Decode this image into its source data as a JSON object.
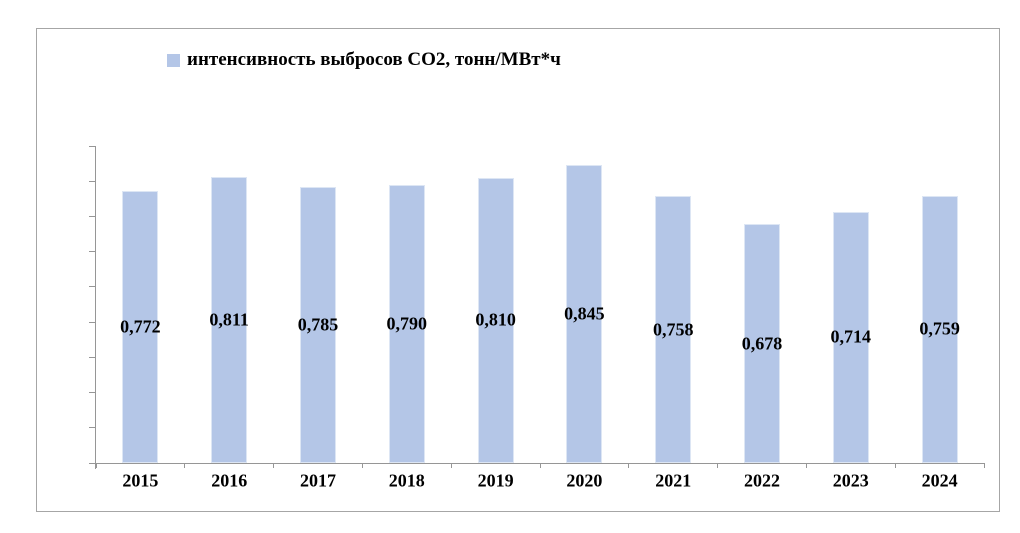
{
  "chart_data": {
    "type": "bar",
    "title": "",
    "legend": [
      "интенсивность выбросов CO2, тонн/МВт*ч"
    ],
    "legend_position": "top",
    "categories": [
      "2015",
      "2016",
      "2017",
      "2018",
      "2019",
      "2020",
      "2021",
      "2022",
      "2023",
      "2024"
    ],
    "series": [
      {
        "name": "интенсивность выбросов CO2, тонн/МВт*ч",
        "values": [
          0.772,
          0.811,
          0.785,
          0.79,
          0.81,
          0.845,
          0.758,
          0.678,
          0.714,
          0.759
        ]
      }
    ],
    "value_labels": [
      "0,772",
      "0,811",
      "0,785",
      "0,790",
      "0,810",
      "0,845",
      "0,758",
      "0,678",
      "0,714",
      "0,759"
    ],
    "value_label_position": "inside-center",
    "xlabel": "",
    "ylabel": "",
    "ylim": [
      0,
      0.9
    ],
    "ytick_step": 0.1,
    "yticklabels_visible": false,
    "grid": false,
    "colors": {
      "bar_fill": "#b4c6e7",
      "bar_edge": "#dde6f4",
      "axis": "#969696",
      "frame_border": "#a6a6a6",
      "text": "#000000"
    }
  }
}
